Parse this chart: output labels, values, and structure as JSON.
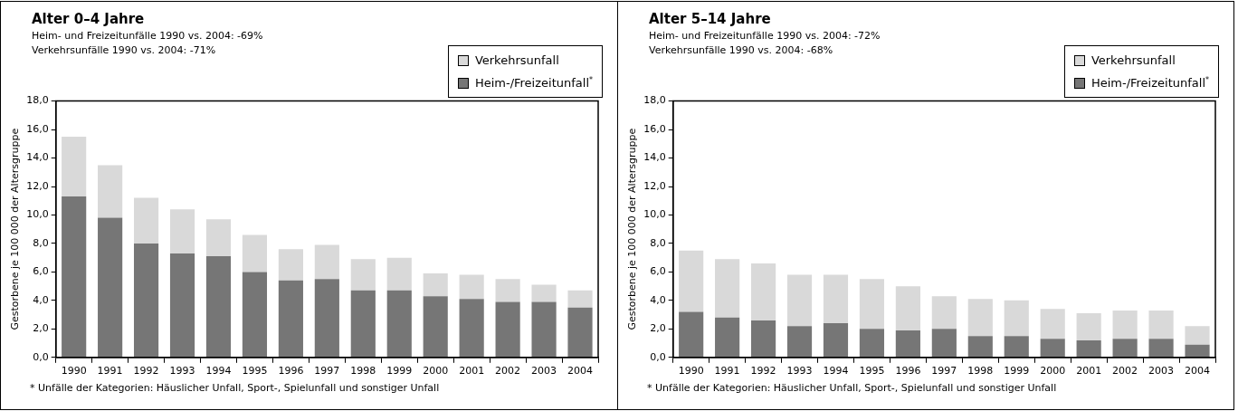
{
  "chart_data": [
    {
      "type": "bar",
      "title": "Alter 0–4 Jahre",
      "subtitle": "Heim- und Freizeitunfälle 1990 vs. 2004: -69%\nVerkehrsunfälle 1990 vs. 2004: -71%",
      "ylabel": "Gestorbene je 100 000 der Altersgruppe",
      "annotations": [
        "* Unfälle der Kategorien: Häuslicher Unfall, Sport-, Spielunfall und sonstiger Unfall"
      ],
      "categories": [
        "1990",
        "1991",
        "1992",
        "1993",
        "1994",
        "1995",
        "1996",
        "1997",
        "1998",
        "1999",
        "2000",
        "2001",
        "2002",
        "2003",
        "2004"
      ],
      "stacked": true,
      "legend": "top right",
      "grid": false,
      "ylim": [
        0,
        18
      ],
      "yticks": [
        {
          "value": 0,
          "label": "0,0"
        },
        {
          "value": 2,
          "label": "2,0"
        },
        {
          "value": 4,
          "label": "4,0"
        },
        {
          "value": 6,
          "label": "6,0"
        },
        {
          "value": 8,
          "label": "8,0"
        },
        {
          "value": 10,
          "label": "10,0"
        },
        {
          "value": 12,
          "label": "12,0"
        },
        {
          "value": 14,
          "label": "14,0"
        },
        {
          "value": 16,
          "label": "16,0"
        },
        {
          "value": 18,
          "label": "18,0"
        }
      ],
      "series": [
        {
          "name": "Heim-/Freizeitunfall$^{*}$",
          "color": "#767676",
          "values": [
            11.3,
            9.8,
            8.0,
            7.3,
            7.1,
            6.0,
            5.4,
            5.5,
            4.7,
            4.7,
            4.3,
            4.1,
            3.9,
            3.9,
            3.5
          ]
        },
        {
          "name": "Verkehrsunfall",
          "color": "#d9d9d9",
          "values": [
            4.2,
            3.7,
            3.2,
            3.1,
            2.6,
            2.6,
            2.2,
            2.4,
            2.2,
            2.3,
            1.6,
            1.7,
            1.6,
            1.2,
            1.2
          ]
        }
      ]
    },
    {
      "type": "bar",
      "title": "Alter 5–14 Jahre",
      "subtitle": "Heim- und Freizeitunfälle 1990 vs. 2004: -72%\nVerkehrsunfälle 1990 vs. 2004: -68%",
      "ylabel": "Gestorbene je 100 000 der Altersgruppe",
      "annotations": [
        "* Unfälle der Kategorien: Häuslicher Unfall, Sport-, Spielunfall und sonstiger Unfall"
      ],
      "categories": [
        "1990",
        "1991",
        "1992",
        "1993",
        "1994",
        "1995",
        "1996",
        "1997",
        "1998",
        "1999",
        "2000",
        "2001",
        "2002",
        "2003",
        "2004"
      ],
      "stacked": true,
      "legend": "top right",
      "grid": false,
      "ylim": [
        0,
        18
      ],
      "yticks": [
        {
          "value": 0,
          "label": "0,0"
        },
        {
          "value": 2,
          "label": "2,0"
        },
        {
          "value": 4,
          "label": "4,0"
        },
        {
          "value": 6,
          "label": "6,0"
        },
        {
          "value": 8,
          "label": "8,0"
        },
        {
          "value": 10,
          "label": "10,0"
        },
        {
          "value": 12,
          "label": "12,0"
        },
        {
          "value": 14,
          "label": "14,0"
        },
        {
          "value": 16,
          "label": "16,0"
        },
        {
          "value": 18,
          "label": "18,0"
        }
      ],
      "series": [
        {
          "name": "Heim-/Freizeitunfall$^{*}$",
          "color": "#767676",
          "values": [
            3.2,
            2.8,
            2.6,
            2.2,
            2.4,
            2.0,
            1.9,
            2.0,
            1.5,
            1.5,
            1.3,
            1.2,
            1.3,
            1.3,
            0.9
          ]
        },
        {
          "name": "Verkehrsunfall",
          "color": "#d9d9d9",
          "values": [
            4.3,
            4.1,
            4.0,
            3.6,
            3.4,
            3.5,
            3.1,
            2.3,
            2.6,
            2.5,
            2.1,
            1.9,
            2.0,
            2.0,
            1.3
          ]
        }
      ]
    }
  ]
}
